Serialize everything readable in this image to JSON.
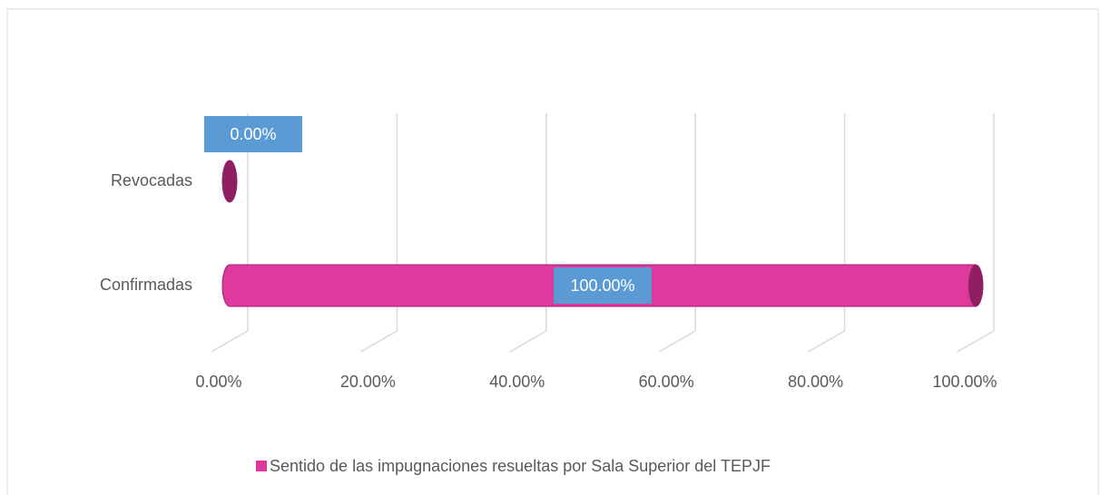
{
  "chart_data": {
    "type": "bar3d_horizontal",
    "categories": [
      "Revocadas",
      "Confirmadas"
    ],
    "series": [
      {
        "name": "Sentido de las impugnaciones resueltas por Sala Superior del TEPJF",
        "color": "#e0399e",
        "values": [
          0,
          100
        ],
        "value_labels": [
          "0.00%",
          "100.00%"
        ]
      }
    ],
    "xlim": [
      0,
      100
    ],
    "xticks": [
      {
        "value": 0,
        "label": "0.00%"
      },
      {
        "value": 20,
        "label": "20.00%"
      },
      {
        "value": 40,
        "label": "40.00%"
      },
      {
        "value": 60,
        "label": "60.00%"
      },
      {
        "value": 80,
        "label": "80.00%"
      },
      {
        "value": 100,
        "label": "100.00%"
      }
    ],
    "grid": true,
    "legend": "bottom"
  }
}
